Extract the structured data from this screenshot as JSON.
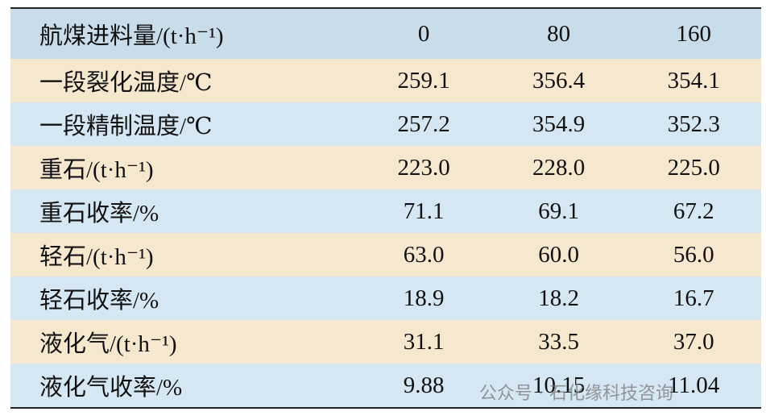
{
  "table": {
    "header": [
      "航煤进料量/(t·h⁻¹)",
      "0",
      "80",
      "160"
    ],
    "rows": [
      [
        "一段裂化温度/℃",
        "259.1",
        "356.4",
        "354.1"
      ],
      [
        "一段精制温度/℃",
        "257.2",
        "354.9",
        "352.3"
      ],
      [
        "重石/(t·h⁻¹)",
        "223.0",
        "228.0",
        "225.0"
      ],
      [
        "重石收率/%",
        "71.1",
        "69.1",
        "67.2"
      ],
      [
        "轻石/(t·h⁻¹)",
        "63.0",
        "60.0",
        "56.0"
      ],
      [
        "轻石收率/%",
        "18.9",
        "18.2",
        "16.7"
      ],
      [
        "液化气/(t·h⁻¹)",
        "31.1",
        "33.5",
        "37.0"
      ],
      [
        "液化气收率/%",
        "9.88",
        "10.15",
        "11.04"
      ]
    ]
  },
  "watermark": "公众号 · 石化缘科技咨询"
}
